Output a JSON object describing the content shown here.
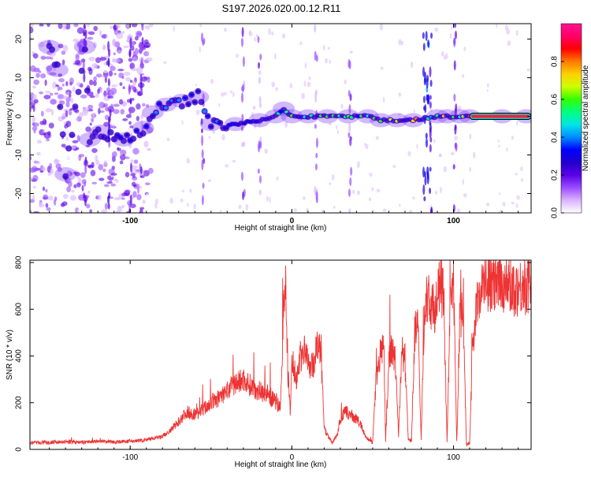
{
  "title": "S197.2026.020.00.12.R11",
  "chart_data": [
    {
      "type": "heatmap",
      "name": "spectrogram",
      "xlabel": "Height of straight line (km)",
      "ylabel": "Frequency (Hz)",
      "xlim": [
        -162,
        148
      ],
      "ylim": [
        -25,
        24
      ],
      "xticks": [
        -100,
        0,
        100
      ],
      "yticks": [
        -20,
        -10,
        0,
        10,
        20
      ],
      "colorbar": {
        "label": "Normalized spectral amplitude",
        "range": [
          0,
          1
        ],
        "ticks": [
          "0.0",
          "0.2",
          "0.4",
          "0.6",
          "0.8"
        ],
        "colors": [
          "#ffffff",
          "#d9b3ff",
          "#9a4dff",
          "#5a00e6",
          "#2200cc",
          "#0000ff",
          "#008cff",
          "#00e6e6",
          "#00ff80",
          "#33ff00",
          "#ccff00",
          "#ffd000",
          "#ff7a00",
          "#ff0000",
          "#ff0066",
          "#ff1493"
        ]
      },
      "features": [
        {
          "x": -150,
          "y": 18,
          "amp": 0.12
        },
        {
          "x": -145,
          "y": 12,
          "amp": 0.15
        },
        {
          "x": -140,
          "y": -15,
          "amp": 0.14
        },
        {
          "x": -128,
          "y": 18,
          "amp": 0.18
        },
        {
          "x": -125,
          "y": -6,
          "amp": 0.3
        },
        {
          "x": -118,
          "y": -4,
          "amp": 0.28
        },
        {
          "x": -104,
          "y": -6,
          "amp": 0.32
        },
        {
          "x": -92,
          "y": -3,
          "amp": 0.35
        },
        {
          "x": -86,
          "y": 1,
          "amp": 0.38
        },
        {
          "x": -78,
          "y": 3,
          "amp": 0.42
        },
        {
          "x": -68,
          "y": 4,
          "amp": 0.4
        },
        {
          "x": -58,
          "y": 5,
          "amp": 0.42
        },
        {
          "x": -50,
          "y": -2,
          "amp": 0.34
        },
        {
          "x": -35,
          "y": -2,
          "amp": 0.4
        },
        {
          "x": -20,
          "y": -1,
          "amp": 0.45
        },
        {
          "x": -10,
          "y": 0,
          "amp": 0.48
        },
        {
          "x": -5,
          "y": 2,
          "amp": 0.55
        },
        {
          "x": 0,
          "y": 0,
          "amp": 0.85
        },
        {
          "x": 10,
          "y": 0,
          "amp": 0.6
        },
        {
          "x": 22,
          "y": 0,
          "amp": 0.58
        },
        {
          "x": 35,
          "y": 0,
          "amp": 0.55
        },
        {
          "x": 47,
          "y": 0,
          "amp": 0.55
        },
        {
          "x": 55,
          "y": -1,
          "amp": 0.62
        },
        {
          "x": 65,
          "y": -1,
          "amp": 0.75
        },
        {
          "x": 75,
          "y": -1,
          "amp": 0.8
        },
        {
          "x": 90,
          "y": 0,
          "amp": 0.5
        },
        {
          "x": 96,
          "y": 0,
          "amp": 0.8
        },
        {
          "x": 104,
          "y": 0,
          "amp": 0.5
        },
        {
          "x": 110,
          "y": 0,
          "amp": 0.92
        },
        {
          "x": 130,
          "y": 0,
          "amp": 0.95
        },
        {
          "x": 145,
          "y": 0,
          "amp": 0.95
        }
      ]
    },
    {
      "type": "line",
      "name": "snr",
      "xlabel": "Height of straight line (km)",
      "ylabel": "SNR (10 * v/v)",
      "xlim": [
        -162,
        148
      ],
      "ylim": [
        0,
        810
      ],
      "xticks": [
        -100,
        0,
        100
      ],
      "yticks": [
        0,
        200,
        400,
        600,
        800
      ],
      "color": "#ee3333",
      "series": [
        {
          "name": "SNR",
          "x": [
            -162,
            -150,
            -140,
            -130,
            -120,
            -110,
            -100,
            -90,
            -80,
            -75,
            -70,
            -65,
            -60,
            -55,
            -50,
            -45,
            -40,
            -35,
            -30,
            -25,
            -20,
            -15,
            -10,
            -7,
            -5,
            -4,
            -3,
            -1,
            0,
            3,
            5,
            8,
            10,
            13,
            15,
            18,
            20,
            22,
            25,
            28,
            30,
            33,
            36,
            40,
            43,
            45,
            48,
            50,
            52,
            55,
            57,
            58,
            60,
            62,
            64,
            66,
            68,
            70,
            72,
            74,
            76,
            78,
            80,
            82,
            84,
            86,
            88,
            90,
            92,
            94,
            96,
            98,
            100,
            102,
            104,
            106,
            108,
            110,
            112,
            116,
            120,
            126,
            132,
            138,
            144,
            148
          ],
          "y": [
            30,
            28,
            32,
            30,
            35,
            32,
            35,
            40,
            55,
            80,
            120,
            160,
            150,
            170,
            200,
            220,
            250,
            280,
            300,
            270,
            250,
            240,
            200,
            180,
            650,
            780,
            400,
            150,
            380,
            300,
            400,
            420,
            380,
            350,
            440,
            420,
            90,
            60,
            30,
            60,
            130,
            160,
            150,
            130,
            100,
            60,
            40,
            30,
            280,
            430,
            430,
            40,
            380,
            440,
            380,
            60,
            420,
            380,
            40,
            40,
            500,
            520,
            40,
            620,
            640,
            620,
            600,
            640,
            720,
            640,
            30,
            600,
            700,
            30,
            580,
            570,
            20,
            30,
            480,
            680,
            720,
            700,
            710,
            690,
            700,
            700
          ]
        }
      ]
    }
  ]
}
